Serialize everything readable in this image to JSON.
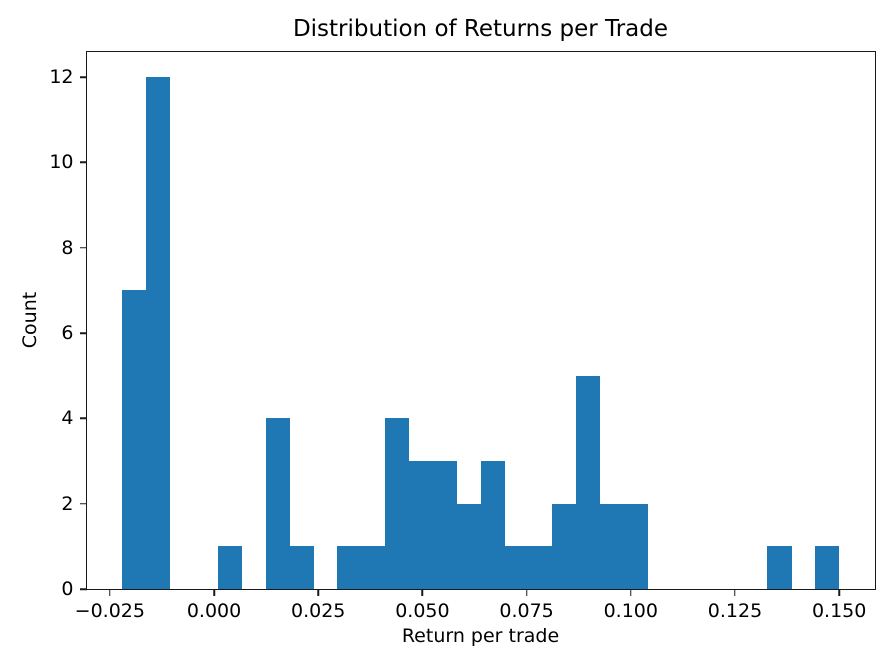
{
  "chart_data": {
    "type": "bar",
    "chart_kind": "histogram",
    "title": "Distribution of Returns per Trade",
    "xlabel": "Return per trade",
    "ylabel": "Count",
    "bar_color": "#1f77b4",
    "grid": false,
    "legend": null,
    "bin_start": -0.022,
    "bin_width": 0.005733,
    "bin_counts": [
      7,
      12,
      0,
      0,
      1,
      0,
      4,
      1,
      0,
      1,
      1,
      4,
      3,
      3,
      2,
      3,
      1,
      1,
      2,
      5,
      2,
      2,
      0,
      0,
      0,
      0,
      0,
      1,
      0,
      1
    ],
    "xlim": [
      -0.0306,
      0.1586
    ],
    "ylim": [
      0,
      12.6
    ],
    "xticks": [
      {
        "value": -0.025,
        "label": "−0.025"
      },
      {
        "value": 0.0,
        "label": "0.000"
      },
      {
        "value": 0.025,
        "label": "0.025"
      },
      {
        "value": 0.05,
        "label": "0.050"
      },
      {
        "value": 0.075,
        "label": "0.075"
      },
      {
        "value": 0.1,
        "label": "0.100"
      },
      {
        "value": 0.125,
        "label": "0.125"
      },
      {
        "value": 0.15,
        "label": "0.150"
      }
    ],
    "yticks": [
      {
        "value": 0,
        "label": "0"
      },
      {
        "value": 2,
        "label": "2"
      },
      {
        "value": 4,
        "label": "4"
      },
      {
        "value": 6,
        "label": "6"
      },
      {
        "value": 8,
        "label": "8"
      },
      {
        "value": 10,
        "label": "10"
      },
      {
        "value": 12,
        "label": "12"
      }
    ]
  }
}
